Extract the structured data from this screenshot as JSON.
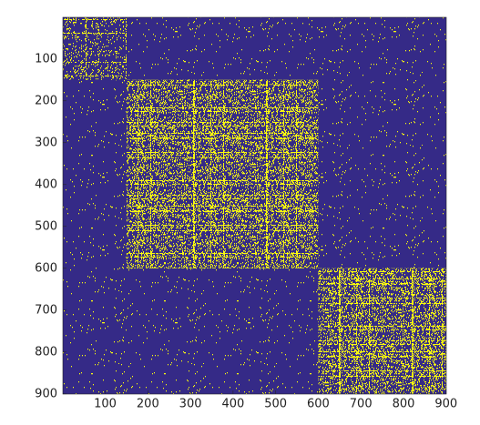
{
  "chart_data": {
    "type": "heatmap",
    "xlim": [
      0.5,
      900.5
    ],
    "ylim": [
      0.5,
      900.5
    ],
    "y_reversed": true,
    "xticks": [
      100,
      200,
      300,
      400,
      500,
      600,
      700,
      800,
      900
    ],
    "yticks": [
      100,
      200,
      300,
      400,
      500,
      600,
      700,
      800,
      900
    ],
    "colors": [
      "#352a87",
      "#f9fb0e"
    ],
    "blocks": [
      {
        "x": [
          1,
          150
        ],
        "y": [
          1,
          150
        ]
      },
      {
        "x": [
          150,
          600
        ],
        "y": [
          150,
          600
        ]
      },
      {
        "x": [
          600,
          900
        ],
        "y": [
          600,
          900
        ]
      }
    ]
  }
}
